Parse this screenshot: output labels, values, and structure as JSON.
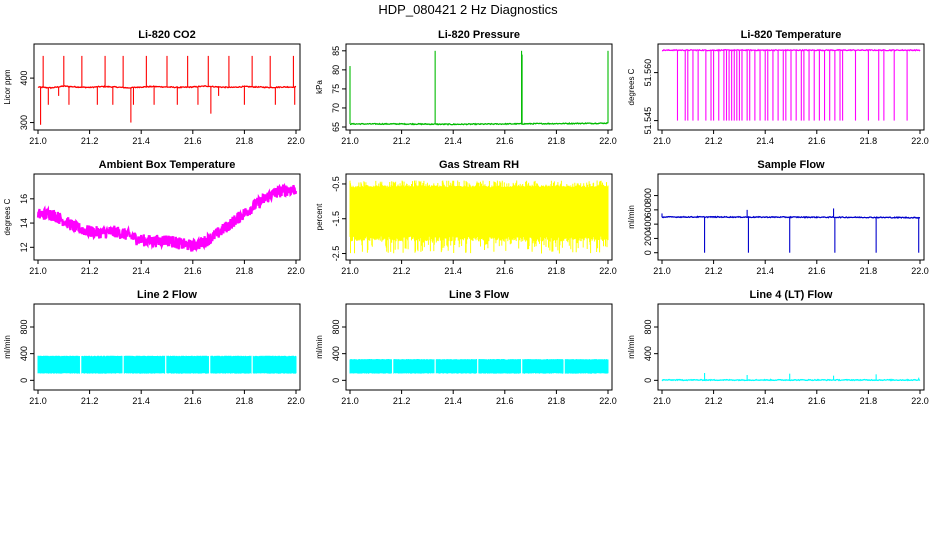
{
  "page_title": "HDP_080421  2 Hz Diagnostics",
  "chart_data": [
    {
      "type": "line",
      "title": "Li-820 CO2",
      "xlabel": "",
      "ylabel": "Licor ppm",
      "xlim": [
        21.0,
        22.0
      ],
      "ylim": [
        290,
        470
      ],
      "x_ticks": [
        "21.0",
        "21.2",
        "21.4",
        "21.6",
        "21.8",
        "22.0"
      ],
      "y_ticks": [
        300,
        400
      ],
      "color": "#ff0000",
      "baseline": 380,
      "series": [
        {
          "x": [
            21.0,
            21.05,
            21.1,
            21.15,
            21.2,
            21.25,
            21.3,
            21.35,
            21.4,
            21.45,
            21.5,
            21.55,
            21.6,
            21.65,
            21.7,
            21.75,
            21.8,
            21.85,
            21.9,
            21.95,
            22.0
          ],
          "values": [
            380,
            378,
            382,
            380,
            379,
            381,
            380,
            378,
            380,
            381,
            380,
            379,
            380,
            382,
            380,
            379,
            381,
            380,
            379,
            380,
            380
          ]
        }
      ],
      "spikes": [
        [
          21.01,
          295
        ],
        [
          21.02,
          450
        ],
        [
          21.04,
          340
        ],
        [
          21.08,
          360
        ],
        [
          21.1,
          450
        ],
        [
          21.12,
          340
        ],
        [
          21.17,
          450
        ],
        [
          21.23,
          340
        ],
        [
          21.26,
          450
        ],
        [
          21.29,
          340
        ],
        [
          21.33,
          450
        ],
        [
          21.36,
          300
        ],
        [
          21.37,
          340
        ],
        [
          21.42,
          450
        ],
        [
          21.45,
          340
        ],
        [
          21.5,
          450
        ],
        [
          21.54,
          340
        ],
        [
          21.58,
          450
        ],
        [
          21.62,
          340
        ],
        [
          21.66,
          450
        ],
        [
          21.67,
          320
        ],
        [
          21.7,
          360
        ],
        [
          21.74,
          450
        ],
        [
          21.8,
          340
        ],
        [
          21.83,
          450
        ],
        [
          21.9,
          450
        ],
        [
          21.92,
          340
        ],
        [
          21.99,
          450
        ],
        [
          21.995,
          340
        ]
      ]
    },
    {
      "type": "line",
      "title": "Li-820 Pressure",
      "xlabel": "",
      "ylabel": "kPa",
      "xlim": [
        21.0,
        22.0
      ],
      "ylim": [
        65,
        86
      ],
      "x_ticks": [
        "21.0",
        "21.2",
        "21.4",
        "21.6",
        "21.8",
        "22.0"
      ],
      "y_ticks": [
        65,
        70,
        75,
        80,
        85
      ],
      "color": "#00bb00",
      "baseline": 65.8,
      "series": [
        {
          "x": [
            21.0,
            21.2,
            21.4,
            21.6,
            21.8,
            22.0
          ],
          "values": [
            65.8,
            65.8,
            65.7,
            65.8,
            65.9,
            66.0
          ]
        }
      ],
      "spikes": [
        [
          21.0,
          81
        ],
        [
          21.33,
          85
        ],
        [
          21.665,
          85
        ],
        [
          21.667,
          84
        ],
        [
          22.0,
          85
        ]
      ]
    },
    {
      "type": "line",
      "title": "Li-820 Temperature",
      "xlabel": "",
      "ylabel": "degrees C",
      "xlim": [
        21.0,
        22.0
      ],
      "ylim": [
        51.543,
        51.568
      ],
      "x_ticks": [
        "21.0",
        "21.2",
        "21.4",
        "21.6",
        "21.8",
        "22.0"
      ],
      "y_ticks": [
        "51.545",
        "51.560"
      ],
      "color": "#ff00ff",
      "baseline": 51.567,
      "series": [
        {
          "x": [
            21.0,
            22.0
          ],
          "values": [
            51.567,
            51.567
          ]
        }
      ],
      "spikes": [
        [
          21.06,
          51.545
        ],
        [
          21.09,
          51.545
        ],
        [
          21.1,
          51.545
        ],
        [
          21.12,
          51.545
        ],
        [
          21.14,
          51.545
        ],
        [
          21.17,
          51.545
        ],
        [
          21.19,
          51.545
        ],
        [
          21.2,
          51.545
        ],
        [
          21.22,
          51.545
        ],
        [
          21.24,
          51.545
        ],
        [
          21.25,
          51.545
        ],
        [
          21.26,
          51.545
        ],
        [
          21.27,
          51.545
        ],
        [
          21.28,
          51.545
        ],
        [
          21.29,
          51.545
        ],
        [
          21.3,
          51.545
        ],
        [
          21.31,
          51.545
        ],
        [
          21.33,
          51.545
        ],
        [
          21.34,
          51.545
        ],
        [
          21.36,
          51.545
        ],
        [
          21.38,
          51.545
        ],
        [
          21.4,
          51.545
        ],
        [
          21.41,
          51.545
        ],
        [
          21.43,
          51.545
        ],
        [
          21.45,
          51.545
        ],
        [
          21.47,
          51.545
        ],
        [
          21.48,
          51.545
        ],
        [
          21.5,
          51.545
        ],
        [
          21.52,
          51.545
        ],
        [
          21.54,
          51.545
        ],
        [
          21.55,
          51.545
        ],
        [
          21.57,
          51.545
        ],
        [
          21.59,
          51.545
        ],
        [
          21.61,
          51.545
        ],
        [
          21.63,
          51.545
        ],
        [
          21.65,
          51.545
        ],
        [
          21.67,
          51.545
        ],
        [
          21.69,
          51.545
        ],
        [
          21.7,
          51.545
        ],
        [
          21.75,
          51.545
        ],
        [
          21.8,
          51.545
        ],
        [
          21.84,
          51.545
        ],
        [
          21.86,
          51.545
        ],
        [
          21.9,
          51.545
        ],
        [
          21.95,
          51.545
        ]
      ]
    },
    {
      "type": "line",
      "title": "Ambient Box Temperature",
      "xlabel": "",
      "ylabel": "degrees C",
      "xlim": [
        21.0,
        22.0
      ],
      "ylim": [
        11.2,
        17.8
      ],
      "x_ticks": [
        "21.0",
        "21.2",
        "21.4",
        "21.6",
        "21.8",
        "22.0"
      ],
      "y_ticks": [
        12,
        14,
        16
      ],
      "color": "#ff00ff",
      "band": 1.0,
      "series": [
        {
          "x": [
            21.0,
            21.05,
            21.1,
            21.15,
            21.2,
            21.25,
            21.3,
            21.35,
            21.4,
            21.45,
            21.5,
            21.55,
            21.6,
            21.65,
            21.7,
            21.75,
            21.8,
            21.85,
            21.9,
            21.95,
            22.0
          ],
          "values": [
            14.7,
            14.8,
            14.2,
            13.6,
            13.3,
            13.2,
            13.3,
            13.0,
            12.6,
            12.5,
            12.6,
            12.3,
            12.1,
            12.5,
            13.2,
            14.0,
            14.8,
            15.6,
            16.3,
            16.7,
            16.8
          ]
        }
      ]
    },
    {
      "type": "line",
      "title": "Gas Stream RH",
      "xlabel": "",
      "ylabel": "percent",
      "xlim": [
        21.0,
        22.0
      ],
      "ylim": [
        -2.6,
        -0.3
      ],
      "x_ticks": [
        "21.0",
        "21.2",
        "21.4",
        "21.6",
        "21.8",
        "22.0"
      ],
      "y_ticks": [
        -2.5,
        -1.5,
        -0.5
      ],
      "color": "#ffff00",
      "band_low": -2.0,
      "band_high": -0.6,
      "noise_low": -2.5,
      "noise_high": -0.4,
      "series": [
        {
          "x": [
            21.0,
            22.0
          ],
          "values": [
            -1.3,
            -1.3
          ]
        }
      ]
    },
    {
      "type": "line",
      "title": "Sample Flow",
      "xlabel": "",
      "ylabel": "ml/min",
      "xlim": [
        21.0,
        22.0
      ],
      "ylim": [
        -60,
        1060
      ],
      "x_ticks": [
        "21.0",
        "21.2",
        "21.4",
        "21.6",
        "21.8",
        "22.0"
      ],
      "y_ticks": [
        0,
        200,
        400,
        600,
        800
      ],
      "color": "#0000cc",
      "baseline": 500,
      "series": [
        {
          "x": [
            21.0,
            21.2,
            21.4,
            21.6,
            21.8,
            22.0
          ],
          "values": [
            500,
            500,
            498,
            497,
            495,
            490
          ]
        }
      ],
      "spikes": [
        [
          21.0,
          550
        ],
        [
          21.165,
          0
        ],
        [
          21.33,
          600
        ],
        [
          21.335,
          0
        ],
        [
          21.495,
          0
        ],
        [
          21.665,
          620
        ],
        [
          21.67,
          0
        ],
        [
          21.83,
          0
        ],
        [
          21.995,
          0
        ]
      ]
    },
    {
      "type": "line",
      "title": "Line 2 Flow",
      "xlabel": "",
      "ylabel": "ml/min",
      "xlim": [
        21.0,
        22.0
      ],
      "ylim": [
        -100,
        1100
      ],
      "x_ticks": [
        "21.0",
        "21.2",
        "21.4",
        "21.6",
        "21.8",
        "22.0"
      ],
      "y_ticks": [
        0,
        400,
        800
      ],
      "color": "#00ffff",
      "band_low": 100,
      "band_high": 370,
      "gaps": [
        21.165,
        21.33,
        21.495,
        21.665,
        21.83
      ],
      "series": [
        {
          "x": [
            21.0,
            22.0
          ],
          "values": [
            235,
            235
          ]
        }
      ]
    },
    {
      "type": "line",
      "title": "Line 3 Flow",
      "xlabel": "",
      "ylabel": "ml/min",
      "xlim": [
        21.0,
        22.0
      ],
      "ylim": [
        -100,
        1100
      ],
      "x_ticks": [
        "21.0",
        "21.2",
        "21.4",
        "21.6",
        "21.8",
        "22.0"
      ],
      "y_ticks": [
        0,
        400,
        800
      ],
      "color": "#00ffff",
      "band_low": 100,
      "band_high": 320,
      "gaps": [
        21.165,
        21.33,
        21.495,
        21.665,
        21.83
      ],
      "series": [
        {
          "x": [
            21.0,
            22.0
          ],
          "values": [
            210,
            210
          ]
        }
      ]
    },
    {
      "type": "line",
      "title": "Line 4 (LT) Flow",
      "xlabel": "",
      "ylabel": "ml/min",
      "xlim": [
        21.0,
        22.0
      ],
      "ylim": [
        -100,
        1100
      ],
      "x_ticks": [
        "21.0",
        "21.2",
        "21.4",
        "21.6",
        "21.8",
        "22.0"
      ],
      "y_ticks": [
        0,
        400,
        800
      ],
      "color": "#00ffff",
      "baseline": 5,
      "series": [
        {
          "x": [
            21.0,
            22.0
          ],
          "values": [
            5,
            5
          ]
        }
      ],
      "spikes": [
        [
          21.165,
          110
        ],
        [
          21.33,
          80
        ],
        [
          21.495,
          100
        ],
        [
          21.665,
          70
        ],
        [
          21.83,
          90
        ],
        [
          21.995,
          40
        ]
      ]
    }
  ]
}
